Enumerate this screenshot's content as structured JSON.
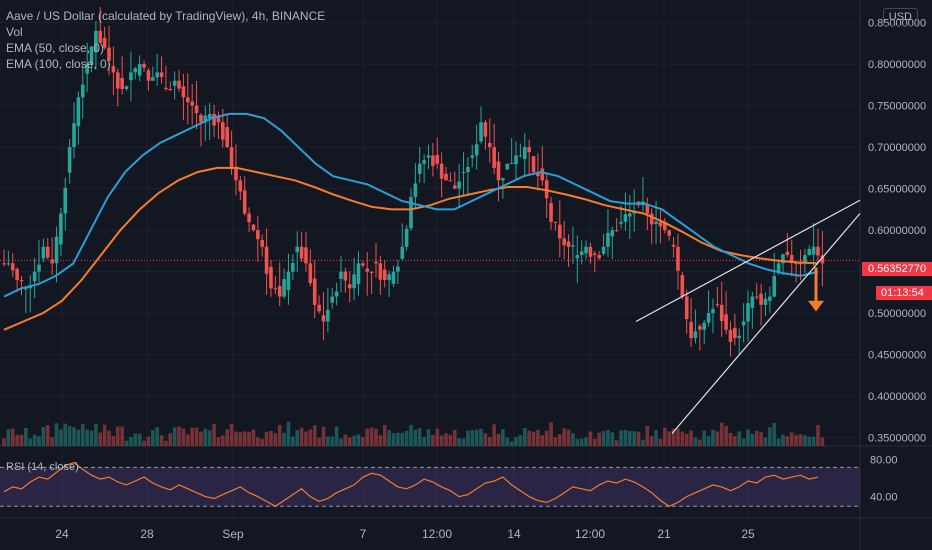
{
  "header": {
    "symbol_line": "Aave / US Dollar (calculated by TradingView), 4h, BINANCE",
    "indicators": [
      "Vol",
      "EMA (50, close, 0)",
      "EMA (100, close, 0)"
    ],
    "currency_button": "USD"
  },
  "price_tag": {
    "price": "0.56352770",
    "countdown": "01:13:54"
  },
  "chart_data": {
    "type": "candlestick",
    "title": "Aave / US Dollar (calculated by TradingView), 4h, BINANCE",
    "price_axis": {
      "ticks": [
        0.85,
        0.8,
        0.75,
        0.7,
        0.65,
        0.6,
        0.55,
        0.5,
        0.45,
        0.4,
        0.35
      ],
      "tick_labels": [
        "0.85000000",
        "0.80000000",
        "0.75000000",
        "0.70000000",
        "0.65000000",
        "0.60000000",
        "",
        "0.50000000",
        "0.45000000",
        "0.40000000",
        "0.35000000"
      ],
      "range": [
        0.34,
        0.87
      ]
    },
    "time_axis": {
      "labels": [
        "24",
        "28",
        "Sep",
        "7",
        "12:00",
        "14",
        "12:00",
        "21",
        "25"
      ]
    },
    "series_shape": [
      0.56,
      0.54,
      0.53,
      0.55,
      0.58,
      0.56,
      0.62,
      0.7,
      0.76,
      0.8,
      0.84,
      0.82,
      0.79,
      0.77,
      0.79,
      0.8,
      0.78,
      0.79,
      0.77,
      0.78,
      0.76,
      0.75,
      0.73,
      0.74,
      0.73,
      0.7,
      0.66,
      0.62,
      0.6,
      0.58,
      0.53,
      0.52,
      0.55,
      0.58,
      0.56,
      0.51,
      0.49,
      0.52,
      0.55,
      0.53,
      0.56,
      0.55,
      0.56,
      0.54,
      0.55,
      0.58,
      0.64,
      0.68,
      0.69,
      0.68,
      0.66,
      0.65,
      0.67,
      0.69,
      0.73,
      0.7,
      0.66,
      0.68,
      0.69,
      0.7,
      0.67,
      0.66,
      0.61,
      0.59,
      0.58,
      0.57,
      0.58,
      0.57,
      0.58,
      0.6,
      0.61,
      0.62,
      0.63,
      0.62,
      0.61,
      0.6,
      0.58,
      0.52,
      0.47,
      0.48,
      0.5,
      0.51,
      0.48,
      0.47,
      0.49,
      0.52,
      0.51,
      0.52,
      0.56,
      0.57,
      0.56,
      0.57,
      0.58,
      0.56
    ],
    "ema50_shape": [
      0.52,
      0.53,
      0.535,
      0.545,
      0.56,
      0.6,
      0.64,
      0.67,
      0.69,
      0.705,
      0.715,
      0.725,
      0.735,
      0.74,
      0.74,
      0.735,
      0.72,
      0.7,
      0.68,
      0.665,
      0.66,
      0.655,
      0.645,
      0.635,
      0.63,
      0.625,
      0.625,
      0.635,
      0.645,
      0.655,
      0.665,
      0.67,
      0.665,
      0.655,
      0.645,
      0.635,
      0.632,
      0.632,
      0.625,
      0.61,
      0.595,
      0.58,
      0.57,
      0.56,
      0.553,
      0.548,
      0.545,
      0.55
    ],
    "ema100_shape": [
      0.48,
      0.49,
      0.5,
      0.515,
      0.54,
      0.57,
      0.6,
      0.625,
      0.645,
      0.66,
      0.67,
      0.675,
      0.675,
      0.67,
      0.665,
      0.66,
      0.652,
      0.643,
      0.635,
      0.628,
      0.625,
      0.625,
      0.63,
      0.638,
      0.643,
      0.648,
      0.652,
      0.652,
      0.648,
      0.643,
      0.637,
      0.63,
      0.625,
      0.62,
      0.61,
      0.598,
      0.585,
      0.575,
      0.57,
      0.566,
      0.563,
      0.561,
      0.56
    ],
    "rsi": {
      "label": "RSI (14, close)",
      "ticks": [
        80.0,
        40.0
      ],
      "tick_labels": [
        "80.00",
        "40.00"
      ],
      "upper_band": 70,
      "lower_band": 30,
      "values": [
        45,
        50,
        48,
        55,
        60,
        58,
        65,
        72,
        75,
        68,
        62,
        58,
        60,
        55,
        52,
        56,
        60,
        54,
        50,
        47,
        52,
        48,
        44,
        40,
        38,
        42,
        46,
        50,
        44,
        40,
        35,
        30,
        36,
        42,
        48,
        40,
        35,
        38,
        44,
        48,
        52,
        60,
        64,
        62,
        56,
        50,
        48,
        52,
        58,
        55,
        50,
        46,
        40,
        42,
        48,
        54,
        56,
        60,
        52,
        46,
        40,
        36,
        34,
        38,
        44,
        50,
        48,
        46,
        52,
        56,
        54,
        58,
        55,
        50,
        44,
        36,
        30,
        34,
        40,
        44,
        48,
        52,
        50,
        46,
        50,
        56,
        54,
        60,
        62,
        58,
        60,
        62,
        58,
        60
      ]
    },
    "trendlines": "rising wedge with downward arrow"
  }
}
